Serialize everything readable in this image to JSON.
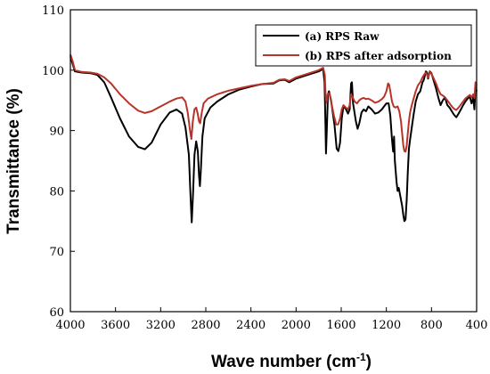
{
  "chart_data": {
    "type": "line",
    "title": "",
    "xlabel": "Wave number (cm",
    "xlabel_sup": "-1",
    "xlabel_close": ")",
    "ylabel": "Transmittance (%)",
    "xlim": [
      4000,
      400
    ],
    "ylim": [
      60,
      110
    ],
    "x_reversed": true,
    "x_ticks": [
      4000,
      3600,
      3200,
      2800,
      2400,
      2000,
      1600,
      1200,
      800,
      400
    ],
    "y_ticks": [
      60,
      70,
      80,
      90,
      100,
      110
    ],
    "x_tick_labels": [
      "4000",
      "3600",
      "3200",
      "2800",
      "2400",
      "2000",
      "1600",
      "1200",
      "800",
      "400"
    ],
    "y_tick_labels": [
      "60",
      "70",
      "80",
      "90",
      "100",
      "110"
    ],
    "grid": false,
    "legend_position": "top-right",
    "legend": [
      {
        "label": "(a) RPS Raw",
        "color": "#000000"
      },
      {
        "label": "(b) RPS after adsorption",
        "color": "#b8342a"
      }
    ],
    "series": [
      {
        "name": "(a) RPS Raw",
        "color": "#000000",
        "points": [
          [
            4000,
            102.3
          ],
          [
            3960,
            99.8
          ],
          [
            3900,
            99.6
          ],
          [
            3820,
            99.5
          ],
          [
            3760,
            99.2
          ],
          [
            3700,
            98.0
          ],
          [
            3640,
            95.5
          ],
          [
            3560,
            92.0
          ],
          [
            3480,
            89.0
          ],
          [
            3400,
            87.3
          ],
          [
            3340,
            86.9
          ],
          [
            3280,
            88.0
          ],
          [
            3200,
            91.0
          ],
          [
            3120,
            93.0
          ],
          [
            3060,
            93.5
          ],
          [
            3010,
            92.8
          ],
          [
            2980,
            90.5
          ],
          [
            2950,
            86.0
          ],
          [
            2935,
            79.0
          ],
          [
            2925,
            74.8
          ],
          [
            2912,
            80.0
          ],
          [
            2900,
            86.0
          ],
          [
            2885,
            88.2
          ],
          [
            2870,
            86.5
          ],
          [
            2860,
            82.5
          ],
          [
            2852,
            80.8
          ],
          [
            2845,
            83.0
          ],
          [
            2830,
            89.0
          ],
          [
            2810,
            92.0
          ],
          [
            2760,
            93.8
          ],
          [
            2700,
            94.8
          ],
          [
            2600,
            96.0
          ],
          [
            2500,
            96.8
          ],
          [
            2400,
            97.3
          ],
          [
            2300,
            97.7
          ],
          [
            2200,
            97.8
          ],
          [
            2150,
            98.3
          ],
          [
            2100,
            98.4
          ],
          [
            2060,
            98.0
          ],
          [
            2000,
            98.6
          ],
          [
            1900,
            99.2
          ],
          [
            1800,
            99.8
          ],
          [
            1760,
            100.2
          ],
          [
            1748,
            98.0
          ],
          [
            1740,
            91.0
          ],
          [
            1735,
            86.2
          ],
          [
            1728,
            90.0
          ],
          [
            1718,
            96.0
          ],
          [
            1708,
            96.5
          ],
          [
            1690,
            95.0
          ],
          [
            1660,
            91.0
          ],
          [
            1640,
            87.0
          ],
          [
            1625,
            86.6
          ],
          [
            1610,
            88.0
          ],
          [
            1595,
            92.0
          ],
          [
            1580,
            94.0
          ],
          [
            1560,
            93.6
          ],
          [
            1540,
            92.8
          ],
          [
            1525,
            93.5
          ],
          [
            1512,
            97.8
          ],
          [
            1505,
            98.0
          ],
          [
            1495,
            94.5
          ],
          [
            1470,
            91.5
          ],
          [
            1455,
            90.3
          ],
          [
            1440,
            91.2
          ],
          [
            1420,
            93.0
          ],
          [
            1400,
            93.5
          ],
          [
            1380,
            93.2
          ],
          [
            1360,
            94.0
          ],
          [
            1330,
            93.5
          ],
          [
            1300,
            92.8
          ],
          [
            1270,
            93.0
          ],
          [
            1240,
            93.5
          ],
          [
            1220,
            94.0
          ],
          [
            1200,
            94.5
          ],
          [
            1180,
            94.5
          ],
          [
            1165,
            92.5
          ],
          [
            1150,
            88.5
          ],
          [
            1140,
            86.5
          ],
          [
            1132,
            89.0
          ],
          [
            1125,
            85.0
          ],
          [
            1110,
            81.5
          ],
          [
            1100,
            80.0
          ],
          [
            1090,
            80.5
          ],
          [
            1075,
            79.0
          ],
          [
            1060,
            77.5
          ],
          [
            1050,
            76.0
          ],
          [
            1040,
            75.0
          ],
          [
            1030,
            75.3
          ],
          [
            1020,
            78.5
          ],
          [
            1010,
            83.0
          ],
          [
            1000,
            87.0
          ],
          [
            990,
            88.5
          ],
          [
            975,
            90.5
          ],
          [
            960,
            92.5
          ],
          [
            940,
            94.8
          ],
          [
            920,
            96.0
          ],
          [
            900,
            96.5
          ],
          [
            880,
            98.0
          ],
          [
            870,
            98.3
          ],
          [
            860,
            99.0
          ],
          [
            850,
            99.8
          ],
          [
            840,
            99.6
          ],
          [
            830,
            98.6
          ],
          [
            815,
            99.8
          ],
          [
            800,
            99.5
          ],
          [
            780,
            98.2
          ],
          [
            760,
            97.0
          ],
          [
            740,
            95.5
          ],
          [
            720,
            94.2
          ],
          [
            700,
            95.0
          ],
          [
            680,
            95.5
          ],
          [
            660,
            94.2
          ],
          [
            640,
            93.8
          ],
          [
            620,
            93.2
          ],
          [
            600,
            92.6
          ],
          [
            580,
            92.2
          ],
          [
            560,
            92.8
          ],
          [
            540,
            93.5
          ],
          [
            520,
            94.2
          ],
          [
            500,
            94.8
          ],
          [
            480,
            95.3
          ],
          [
            460,
            95.6
          ],
          [
            445,
            94.5
          ],
          [
            430,
            95.5
          ],
          [
            420,
            93.5
          ],
          [
            410,
            97.2
          ],
          [
            400,
            96.5
          ]
        ]
      },
      {
        "name": "(b) RPS after adsorption",
        "color": "#b8342a",
        "points": [
          [
            4000,
            102.6
          ],
          [
            3980,
            101.5
          ],
          [
            3960,
            100.0
          ],
          [
            3900,
            99.7
          ],
          [
            3820,
            99.6
          ],
          [
            3760,
            99.4
          ],
          [
            3700,
            98.8
          ],
          [
            3640,
            97.8
          ],
          [
            3560,
            96.0
          ],
          [
            3480,
            94.5
          ],
          [
            3400,
            93.3
          ],
          [
            3340,
            92.9
          ],
          [
            3280,
            93.2
          ],
          [
            3200,
            94.0
          ],
          [
            3120,
            94.8
          ],
          [
            3060,
            95.3
          ],
          [
            3010,
            95.5
          ],
          [
            2980,
            94.8
          ],
          [
            2960,
            93.0
          ],
          [
            2940,
            90.0
          ],
          [
            2928,
            88.6
          ],
          [
            2915,
            91.5
          ],
          [
            2900,
            93.5
          ],
          [
            2885,
            93.8
          ],
          [
            2872,
            92.8
          ],
          [
            2860,
            91.5
          ],
          [
            2850,
            91.2
          ],
          [
            2840,
            92.5
          ],
          [
            2820,
            94.5
          ],
          [
            2780,
            95.3
          ],
          [
            2700,
            96.0
          ],
          [
            2600,
            96.6
          ],
          [
            2500,
            97.0
          ],
          [
            2400,
            97.4
          ],
          [
            2300,
            97.7
          ],
          [
            2200,
            97.9
          ],
          [
            2150,
            98.4
          ],
          [
            2100,
            98.5
          ],
          [
            2060,
            98.2
          ],
          [
            2000,
            98.8
          ],
          [
            1900,
            99.4
          ],
          [
            1800,
            100.0
          ],
          [
            1760,
            100.4
          ],
          [
            1745,
            99.2
          ],
          [
            1738,
            95.8
          ],
          [
            1730,
            94.6
          ],
          [
            1720,
            96.0
          ],
          [
            1705,
            96.2
          ],
          [
            1690,
            94.8
          ],
          [
            1665,
            92.5
          ],
          [
            1645,
            91.0
          ],
          [
            1628,
            91.0
          ],
          [
            1610,
            92.0
          ],
          [
            1595,
            93.5
          ],
          [
            1580,
            94.2
          ],
          [
            1560,
            93.8
          ],
          [
            1540,
            93.5
          ],
          [
            1525,
            94.2
          ],
          [
            1512,
            96.0
          ],
          [
            1500,
            95.5
          ],
          [
            1480,
            94.8
          ],
          [
            1460,
            94.5
          ],
          [
            1440,
            95.0
          ],
          [
            1420,
            95.3
          ],
          [
            1400,
            95.4
          ],
          [
            1380,
            95.2
          ],
          [
            1360,
            95.3
          ],
          [
            1330,
            95.0
          ],
          [
            1300,
            94.6
          ],
          [
            1270,
            94.8
          ],
          [
            1240,
            95.2
          ],
          [
            1220,
            95.6
          ],
          [
            1200,
            96.5
          ],
          [
            1185,
            97.8
          ],
          [
            1175,
            97.6
          ],
          [
            1165,
            96.5
          ],
          [
            1150,
            94.8
          ],
          [
            1135,
            94.0
          ],
          [
            1120,
            93.8
          ],
          [
            1100,
            94.0
          ],
          [
            1085,
            93.2
          ],
          [
            1070,
            91.5
          ],
          [
            1060,
            89.5
          ],
          [
            1050,
            87.5
          ],
          [
            1040,
            86.6
          ],
          [
            1030,
            86.5
          ],
          [
            1020,
            87.5
          ],
          [
            1010,
            89.5
          ],
          [
            1000,
            91.5
          ],
          [
            990,
            93.0
          ],
          [
            975,
            94.2
          ],
          [
            960,
            95.2
          ],
          [
            940,
            96.5
          ],
          [
            920,
            97.5
          ],
          [
            900,
            98.0
          ],
          [
            880,
            98.8
          ],
          [
            860,
            99.4
          ],
          [
            850,
            99.6
          ],
          [
            840,
            99.2
          ],
          [
            830,
            98.8
          ],
          [
            815,
            99.7
          ],
          [
            800,
            99.4
          ],
          [
            780,
            98.6
          ],
          [
            760,
            97.8
          ],
          [
            740,
            96.8
          ],
          [
            720,
            96.0
          ],
          [
            700,
            95.8
          ],
          [
            680,
            95.5
          ],
          [
            660,
            95.0
          ],
          [
            640,
            94.5
          ],
          [
            620,
            94.0
          ],
          [
            600,
            93.6
          ],
          [
            580,
            93.4
          ],
          [
            560,
            93.8
          ],
          [
            540,
            94.3
          ],
          [
            520,
            94.8
          ],
          [
            500,
            95.3
          ],
          [
            480,
            95.6
          ],
          [
            460,
            95.9
          ],
          [
            445,
            95.5
          ],
          [
            430,
            96.0
          ],
          [
            420,
            95.4
          ],
          [
            410,
            98.0
          ],
          [
            400,
            97.5
          ]
        ]
      }
    ]
  }
}
